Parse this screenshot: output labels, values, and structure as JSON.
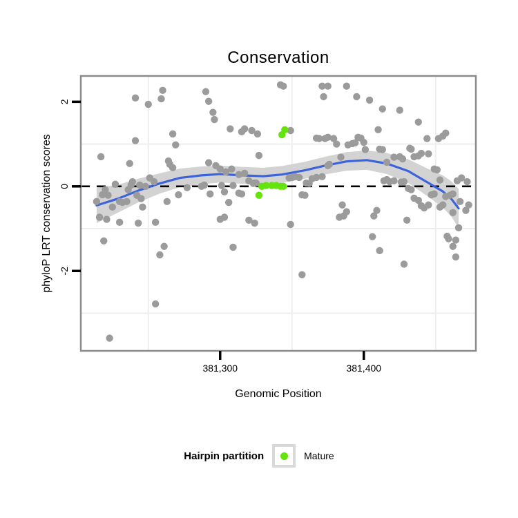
{
  "title": "Conservation",
  "x_axis": {
    "label": "Genomic Position",
    "ticks": [
      {
        "value": 381300,
        "label": "381,300"
      },
      {
        "value": 381400,
        "label": "381,400"
      }
    ],
    "minor_gridlines": [
      381250,
      381350,
      381450
    ]
  },
  "y_axis": {
    "label": "phyloP LRT conservation scores",
    "ticks": [
      {
        "value": 2,
        "label": "2"
      },
      {
        "value": 0,
        "label": "0"
      },
      {
        "value": -2,
        "label": "-2"
      }
    ],
    "minor_gridlines": [
      1,
      -1,
      -3
    ]
  },
  "legend": {
    "title": "Hairpin partition",
    "items": [
      {
        "label": "Mature",
        "color": "#65e30d"
      }
    ]
  },
  "colors": {
    "point_gray": "#9b9b9b",
    "mature_green": "#65e30d",
    "smooth_blue": "#3d63db",
    "ribbon_gray": "#d3d3d3",
    "panel_border": "#8a8a8a",
    "gridline": "#eeeeee",
    "reference_line": "#000000",
    "text": "#000000"
  },
  "chart_data": {
    "type": "scatter",
    "title": "Conservation",
    "xlabel": "Genomic Position",
    "ylabel": "phyloP LRT conservation scores",
    "x_range": [
      381203,
      381478
    ],
    "y_range": [
      -3.89,
      2.61
    ],
    "reference_line_y": 0,
    "grid": "minor-only",
    "legend_position": "bottom",
    "series": [
      {
        "name": "conservation-scores",
        "color": "#9b9b9b",
        "points": [
          [
            381241,
            2.09
          ],
          [
            381250,
            1.94
          ],
          [
            381259,
            2.07
          ],
          [
            381260,
            2.27
          ],
          [
            381290,
            2.24
          ],
          [
            381292,
            2.01
          ],
          [
            381295,
            1.75
          ],
          [
            381296,
            1.58
          ],
          [
            381307,
            1.36
          ],
          [
            381315,
            1.29
          ],
          [
            381317,
            1.36
          ],
          [
            381322,
            1.32
          ],
          [
            381326,
            1.24
          ],
          [
            381342,
            2.4
          ],
          [
            381344,
            2.37
          ],
          [
            381349,
            1.32
          ],
          [
            381371,
            2.37
          ],
          [
            381375,
            2.37
          ],
          [
            381372,
            2.12
          ],
          [
            381388,
            2.37
          ],
          [
            381395,
            2.12
          ],
          [
            381404,
            2.04
          ],
          [
            381410,
            1.34
          ],
          [
            381413,
            1.83
          ],
          [
            381425,
            1.8
          ],
          [
            381438,
            1.52
          ],
          [
            381444,
            1.13
          ],
          [
            381452,
            1.13
          ],
          [
            381455,
            1.19
          ],
          [
            381457,
            1.26
          ],
          [
            381267,
            1.24
          ],
          [
            381241,
            1.08
          ],
          [
            381269,
            0.98
          ],
          [
            381217,
            0.7
          ],
          [
            381237,
            0.54
          ],
          [
            381264,
            0.6
          ],
          [
            381265,
            0.52
          ],
          [
            381267,
            0.44
          ],
          [
            381292,
            0.56
          ],
          [
            381297,
            0.49
          ],
          [
            381300,
            0.41
          ],
          [
            381304,
            0.34
          ],
          [
            381308,
            0.41
          ],
          [
            381313,
            0.28
          ],
          [
            381317,
            0.31
          ],
          [
            381320,
            0.13
          ],
          [
            381324,
            0.08
          ],
          [
            381327,
            0.73
          ],
          [
            381367,
            1.14
          ],
          [
            381369,
            1.13
          ],
          [
            381373,
            1.13
          ],
          [
            381375,
            1.16
          ],
          [
            381379,
            1.13
          ],
          [
            381381,
            1.0
          ],
          [
            381384,
            0.69
          ],
          [
            381389,
            0.98
          ],
          [
            381392,
            1.01
          ],
          [
            381394,
            1.03
          ],
          [
            381396,
            1.16
          ],
          [
            381398,
            1.14
          ],
          [
            381400,
            1.04
          ],
          [
            381401,
            0.87
          ],
          [
            381411,
            0.88
          ],
          [
            381413,
            0.87
          ],
          [
            381416,
            0.57
          ],
          [
            381421,
            0.69
          ],
          [
            381425,
            0.7
          ],
          [
            381427,
            0.65
          ],
          [
            381432,
            0.9
          ],
          [
            381433,
            0.88
          ],
          [
            381435,
            0.7
          ],
          [
            381438,
            0.72
          ],
          [
            381440,
            0.78
          ],
          [
            381445,
            0.77
          ],
          [
            381449,
            0.41
          ],
          [
            381451,
            0.39
          ],
          [
            381453,
            0.15
          ],
          [
            381214,
            -0.36
          ],
          [
            381218,
            -0.2
          ],
          [
            381220,
            -0.08
          ],
          [
            381222,
            -0.21
          ],
          [
            381225,
            -0.49
          ],
          [
            381227,
            0.05
          ],
          [
            381230,
            -0.36
          ],
          [
            381232,
            -0.38
          ],
          [
            381235,
            -0.36
          ],
          [
            381236,
            -0.08
          ],
          [
            381238,
            0.03
          ],
          [
            381239,
            0.11
          ],
          [
            381242,
            -0.21
          ],
          [
            381244,
            0.03
          ],
          [
            381245,
            -0.29
          ],
          [
            381246,
            -0.49
          ],
          [
            381248,
            0.0
          ],
          [
            381251,
            0.2
          ],
          [
            381254,
            0.11
          ],
          [
            381263,
            -0.36
          ],
          [
            381271,
            -0.2
          ],
          [
            381277,
            -0.03
          ],
          [
            381287,
            0.0
          ],
          [
            381289,
            0.03
          ],
          [
            381293,
            -0.18
          ],
          [
            381301,
            0.02
          ],
          [
            381303,
            -0.13
          ],
          [
            381306,
            -0.38
          ],
          [
            381309,
            0.02
          ],
          [
            381313,
            -0.16
          ],
          [
            381315,
            -0.18
          ],
          [
            381323,
            0.07
          ],
          [
            381325,
            0.08
          ],
          [
            381348,
            0.2
          ],
          [
            381350,
            0.21
          ],
          [
            381352,
            0.23
          ],
          [
            381355,
            0.21
          ],
          [
            381360,
            0.08
          ],
          [
            381362,
            0.07
          ],
          [
            381364,
            0.18
          ],
          [
            381367,
            0.21
          ],
          [
            381371,
            0.23
          ],
          [
            381357,
            -0.2
          ],
          [
            381359,
            -0.21
          ],
          [
            381375,
            0.49
          ],
          [
            381376,
            0.52
          ],
          [
            381385,
            -0.44
          ],
          [
            381388,
            -0.6
          ],
          [
            381409,
            -0.57
          ],
          [
            381414,
            0.13
          ],
          [
            381416,
            0.16
          ],
          [
            381418,
            0.11
          ],
          [
            381421,
            0.13
          ],
          [
            381426,
            0.1
          ],
          [
            381428,
            0.11
          ],
          [
            381431,
            -0.05
          ],
          [
            381433,
            -0.08
          ],
          [
            381435,
            -0.28
          ],
          [
            381438,
            -0.33
          ],
          [
            381440,
            -0.46
          ],
          [
            381442,
            -0.51
          ],
          [
            381445,
            -0.44
          ],
          [
            381447,
            -0.2
          ],
          [
            381449,
            -0.18
          ],
          [
            381453,
            -0.49
          ],
          [
            381455,
            -0.44
          ],
          [
            381457,
            -0.24
          ],
          [
            381460,
            -0.21
          ],
          [
            381462,
            -0.18
          ],
          [
            381465,
            0.13
          ],
          [
            381468,
            0.2
          ],
          [
            381472,
            0.11
          ],
          [
            381473,
            -0.44
          ],
          [
            381467,
            -0.36
          ],
          [
            381471,
            -0.57
          ],
          [
            381462,
            -0.62
          ],
          [
            381216,
            -0.73
          ],
          [
            381221,
            -0.78
          ],
          [
            381230,
            -0.85
          ],
          [
            381243,
            -0.87
          ],
          [
            381255,
            -0.85
          ],
          [
            381300,
            -0.78
          ],
          [
            381303,
            -0.73
          ],
          [
            381320,
            -0.8
          ],
          [
            381324,
            -0.87
          ],
          [
            381219,
            -1.29
          ],
          [
            381261,
            -1.42
          ],
          [
            381258,
            -1.62
          ],
          [
            381309,
            -1.44
          ],
          [
            381255,
            -2.78
          ],
          [
            381223,
            -3.59
          ],
          [
            381349,
            -0.9
          ],
          [
            381383,
            -0.73
          ],
          [
            381386,
            -0.7
          ],
          [
            381407,
            -0.7
          ],
          [
            381430,
            -0.8
          ],
          [
            381466,
            -0.98
          ],
          [
            381458,
            -1.18
          ],
          [
            381459,
            -1.24
          ],
          [
            381464,
            -1.27
          ],
          [
            381462,
            -1.42
          ],
          [
            381464,
            -1.67
          ],
          [
            381406,
            -1.19
          ],
          [
            381411,
            -1.52
          ],
          [
            381428,
            -1.84
          ],
          [
            381357,
            -2.09
          ]
        ]
      },
      {
        "name": "Mature",
        "color": "#65e30d",
        "points": [
          [
            381329,
            0.0
          ],
          [
            381332,
            0.02
          ],
          [
            381336,
            0.02
          ],
          [
            381339,
            0.02
          ],
          [
            381342,
            0.0
          ],
          [
            381344,
            0.0
          ],
          [
            381327,
            -0.21
          ],
          [
            381343,
            1.22
          ],
          [
            381345,
            1.34
          ]
        ]
      }
    ],
    "smooth": {
      "name": "loess-fit",
      "color": "#3d63db",
      "ribbon_color": "#d3d3d3",
      "line": [
        [
          381214,
          -0.45
        ],
        [
          381229,
          -0.29
        ],
        [
          381243,
          -0.1
        ],
        [
          381258,
          0.07
        ],
        [
          381272,
          0.2
        ],
        [
          381287,
          0.26
        ],
        [
          381300,
          0.29
        ],
        [
          381315,
          0.26
        ],
        [
          381330,
          0.24
        ],
        [
          381343,
          0.28
        ],
        [
          381359,
          0.38
        ],
        [
          381373,
          0.49
        ],
        [
          381388,
          0.59
        ],
        [
          381402,
          0.62
        ],
        [
          381416,
          0.54
        ],
        [
          381431,
          0.36
        ],
        [
          381445,
          0.08
        ],
        [
          381455,
          -0.12
        ],
        [
          381461,
          -0.3
        ],
        [
          381466,
          -0.52
        ]
      ],
      "ci_halfwidth": [
        0.42,
        0.33,
        0.28,
        0.24,
        0.22,
        0.21,
        0.2,
        0.2,
        0.2,
        0.2,
        0.2,
        0.21,
        0.22,
        0.23,
        0.25,
        0.28,
        0.33,
        0.38,
        0.42,
        0.46
      ]
    }
  }
}
